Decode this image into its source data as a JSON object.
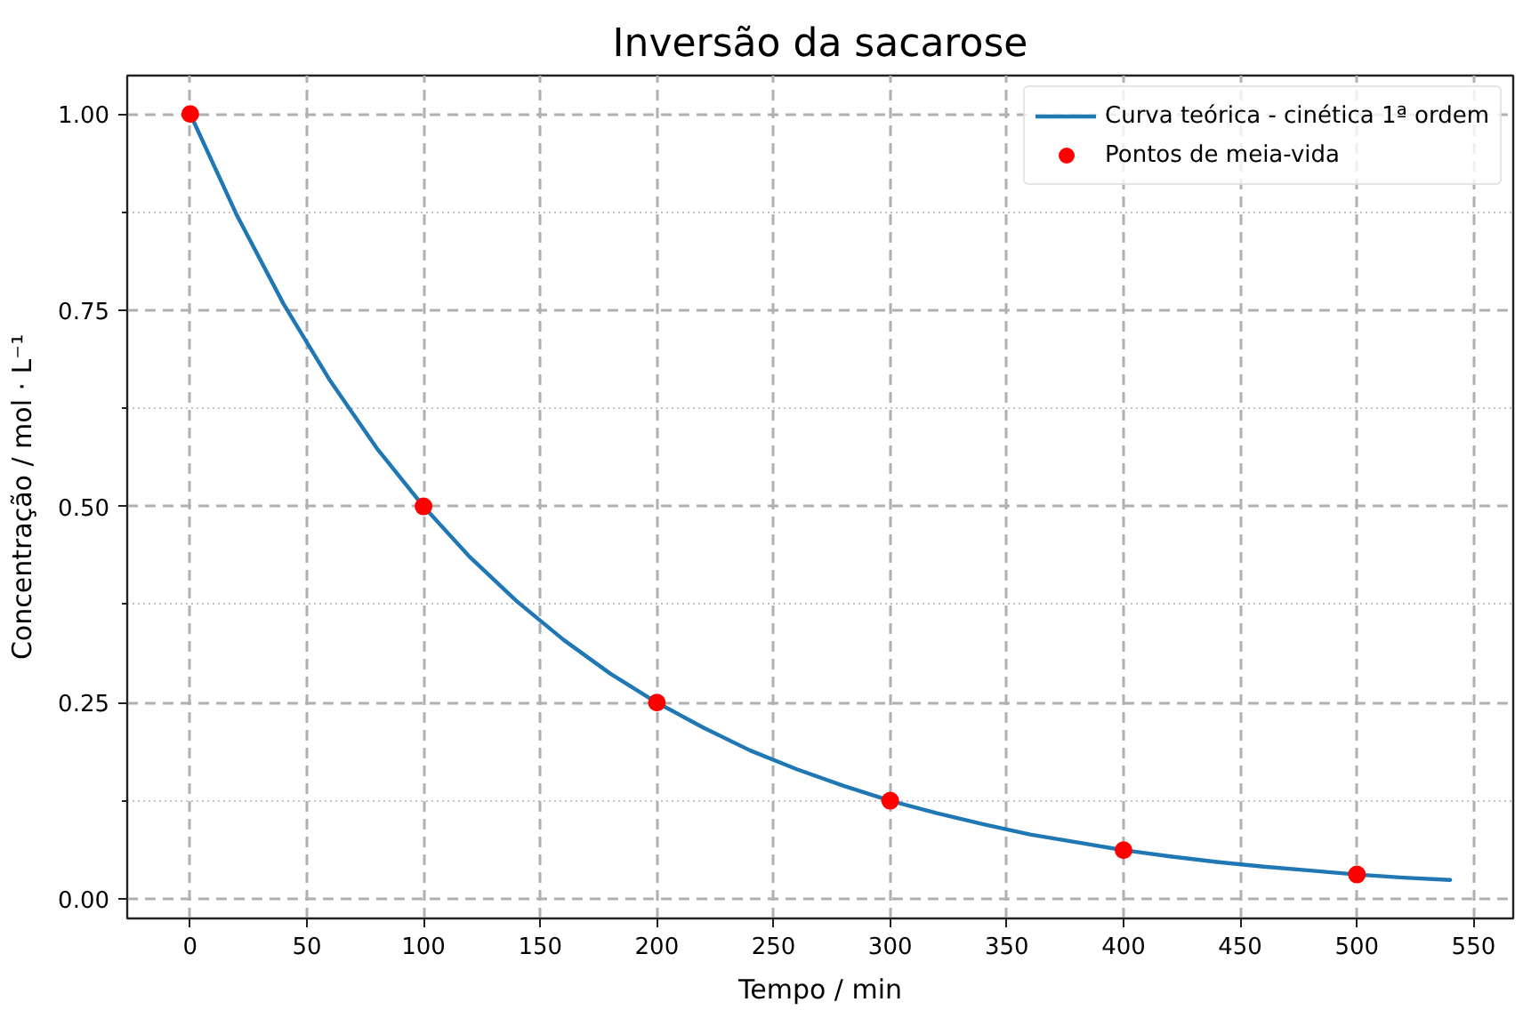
{
  "chart_data": {
    "type": "line",
    "title": "Inversão da sacarose",
    "xlabel": "Tempo / min",
    "ylabel": "Concentração / mol · L⁻¹",
    "xlim": [
      -27,
      567
    ],
    "ylim": [
      -0.025,
      1.049
    ],
    "xticks": [
      0,
      50,
      100,
      150,
      200,
      250,
      300,
      350,
      400,
      450,
      500,
      550
    ],
    "yticks": [
      {
        "value": 0,
        "label": "0.00"
      },
      {
        "value": 0.125,
        "label": null
      },
      {
        "value": 0.25,
        "label": "0.25"
      },
      {
        "value": 0.375,
        "label": null
      },
      {
        "value": 0.5,
        "label": "0.50"
      },
      {
        "value": 0.625,
        "label": null
      },
      {
        "value": 0.75,
        "label": "0.75"
      },
      {
        "value": 0.875,
        "label": null
      },
      {
        "value": 1,
        "label": "1.00"
      }
    ],
    "grid": true,
    "legend": "top right",
    "series": [
      {
        "name": "Curva teórica - cinética 1ª ordem",
        "color": "#1f77b4",
        "x": [
          0,
          20,
          40,
          60,
          80,
          100,
          120,
          140,
          160,
          180,
          200,
          220,
          240,
          260,
          280,
          300,
          320,
          340,
          360,
          380,
          400,
          420,
          440,
          460,
          480,
          500,
          520,
          540
        ],
        "values": [
          1,
          0.871,
          0.758,
          0.66,
          0.574,
          0.5,
          0.435,
          0.379,
          0.33,
          0.287,
          0.25,
          0.218,
          0.189,
          0.165,
          0.144,
          0.125,
          0.109,
          0.095,
          0.082,
          0.072,
          0.062,
          0.054,
          0.047,
          0.041,
          0.036,
          0.031,
          0.027,
          0.024
        ]
      },
      {
        "name": "Pontos de meia-vida",
        "type": "scatter",
        "marker": "circle",
        "color": "#ff0000",
        "x": [
          0,
          100,
          200,
          300,
          400,
          500
        ],
        "values": [
          1,
          0.5,
          0.25,
          0.125,
          0.062,
          0.031
        ]
      }
    ]
  }
}
